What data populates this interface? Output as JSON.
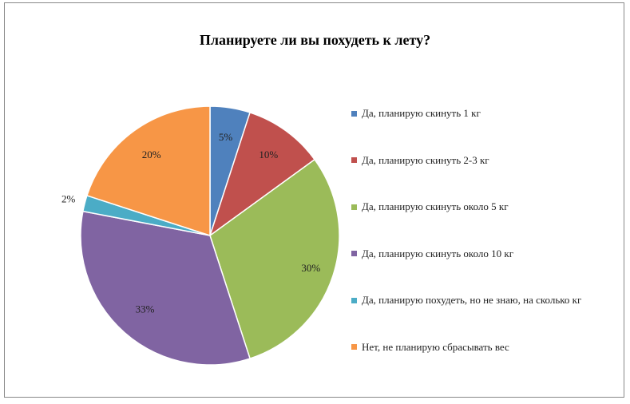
{
  "chart_data": {
    "type": "pie",
    "title": "Планируете  ли вы похудеть  к лету?",
    "legend_position": "right",
    "slices": [
      {
        "label": "Да, планирую скинуть 1 кг",
        "value": 5,
        "value_label": "5%",
        "color": "#4F81BD"
      },
      {
        "label": "Да, планирую скинуть 2-3 кг",
        "value": 10,
        "value_label": "10%",
        "color": "#C0504D"
      },
      {
        "label": "Да, планирую скинуть около 5 кг",
        "value": 30,
        "value_label": "30%",
        "color": "#9BBB59"
      },
      {
        "label": "Да, планирую скинуть около 10 кг",
        "value": 33,
        "value_label": "33%",
        "color": "#8064A2"
      },
      {
        "label": "Да, планирую похудеть, но не знаю, на сколько кг",
        "value": 2,
        "value_label": "2%",
        "color": "#4BACC6"
      },
      {
        "label": "Нет, не планирую сбрасывать вес",
        "value": 20,
        "value_label": "20%",
        "color": "#F79646"
      }
    ]
  }
}
